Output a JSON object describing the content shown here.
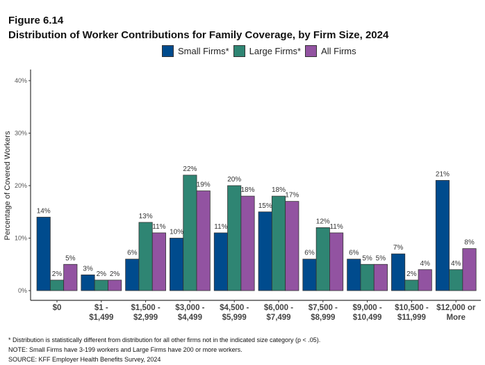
{
  "figure_label": "Figure 6.14",
  "chart_data": {
    "type": "bar",
    "title": "Distribution of Worker Contributions for Family Coverage, by Firm Size, 2024",
    "ylabel": "Percentage of Covered Workers",
    "xlabel": "",
    "ylim": [
      0,
      40
    ],
    "yticks": [
      "0%",
      "10%",
      "20%",
      "30%",
      "40%"
    ],
    "grid": false,
    "legend_position": "top",
    "categories": [
      [
        "$0"
      ],
      [
        "$1 -",
        "$1,499"
      ],
      [
        "$1,500 -",
        "$2,999"
      ],
      [
        "$3,000 -",
        "$4,499"
      ],
      [
        "$4,500 -",
        "$5,999"
      ],
      [
        "$6,000 -",
        "$7,499"
      ],
      [
        "$7,500 -",
        "$8,999"
      ],
      [
        "$9,000 -",
        "$10,499"
      ],
      [
        "$10,500 -",
        "$11,999"
      ],
      [
        "$12,000 or",
        "More"
      ]
    ],
    "series": [
      {
        "name": "Small Firms*",
        "color": "#004B8D",
        "values": [
          14,
          3,
          6,
          10,
          11,
          15,
          6,
          6,
          7,
          21
        ]
      },
      {
        "name": "Large Firms*",
        "color": "#2F8573",
        "values": [
          2,
          2,
          13,
          22,
          20,
          18,
          12,
          5,
          2,
          4
        ]
      },
      {
        "name": "All Firms",
        "color": "#9253A1",
        "values": [
          5,
          2,
          11,
          19,
          18,
          17,
          11,
          5,
          4,
          8
        ]
      }
    ]
  },
  "notes": [
    "* Distribution is statistically different from distribution for all other firms not in the indicated size category (p < .05).",
    "NOTE: Small Firms have 3-199 workers and Large Firms have 200 or more workers.",
    "SOURCE: KFF Employer Health Benefits Survey, 2024"
  ]
}
